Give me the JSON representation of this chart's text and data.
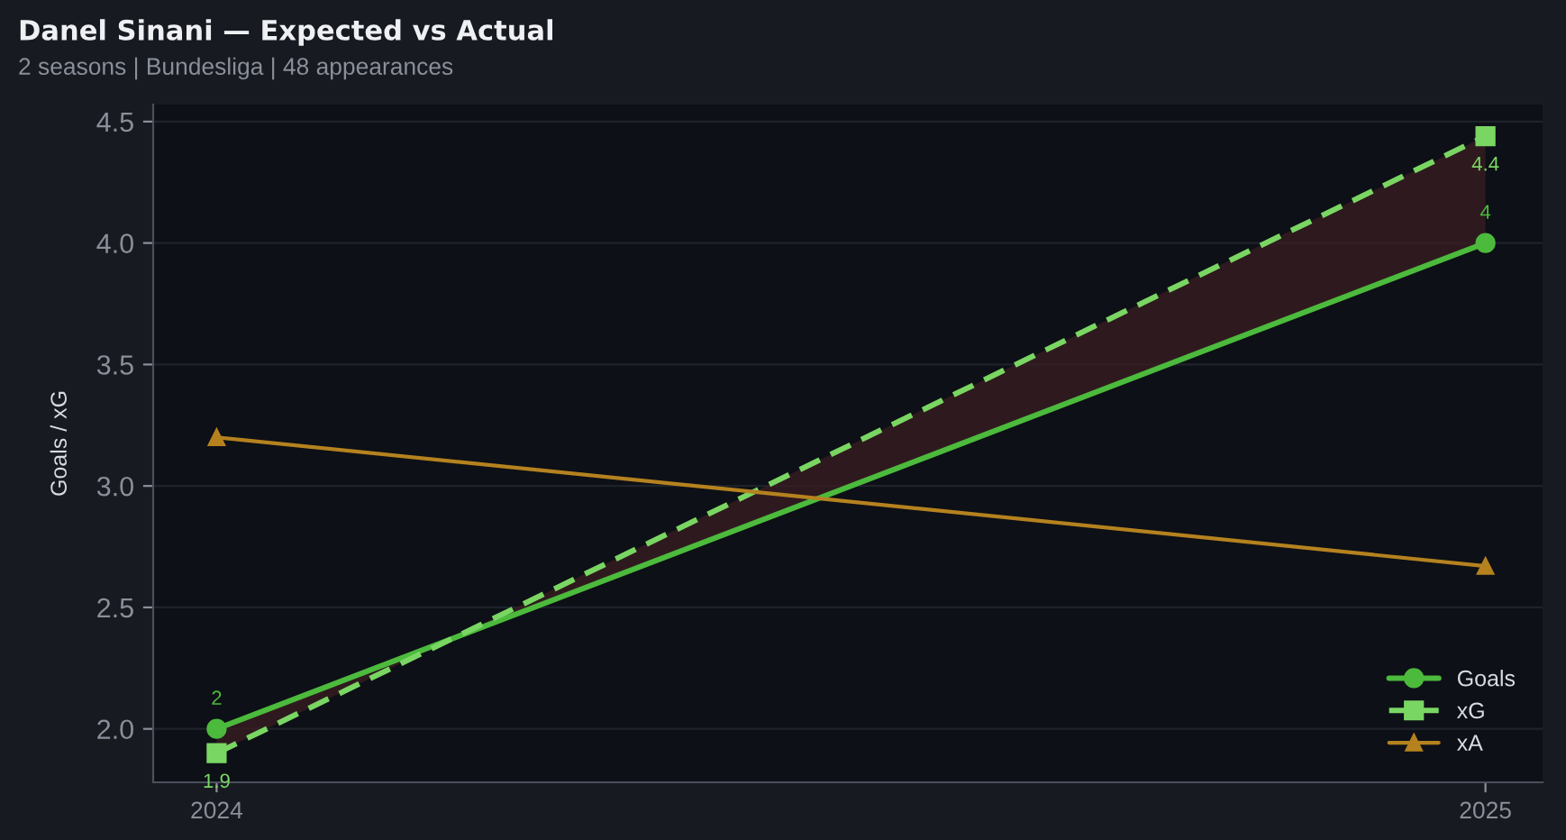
{
  "chart_data": {
    "type": "line",
    "title": "Danel Sinani — Expected vs Actual",
    "subtitle": "2 seasons | Bundesliga | 48 appearances",
    "ylabel": "Goals / xG",
    "x": [
      2024,
      2025
    ],
    "xlim": [
      2023.95,
      2025.045
    ],
    "xticks": [
      2024,
      2025
    ],
    "series": [
      {
        "name": "Goals",
        "color": "#4cba3c",
        "values": [
          2,
          4
        ],
        "marker": "circle",
        "line_style": "solid",
        "value_labels": [
          "2",
          "4"
        ]
      },
      {
        "name": "xG",
        "color": "#7ad663",
        "values": [
          1.9,
          4.44
        ],
        "marker": "square",
        "line_style": "dashed",
        "value_labels": [
          "1.9",
          "4.4"
        ],
        "lower": [
          2,
          4
        ],
        "upper": [
          1.9,
          4.44
        ]
      },
      {
        "name": "xA",
        "color": "#b5821f",
        "values": [
          3.2,
          2.67
        ],
        "marker": "triangle",
        "line_style": "solid"
      }
    ],
    "ylim": [
      1.78,
      4.57
    ],
    "yticks": [
      {
        "value": 2,
        "label": "2.0"
      },
      2.5,
      {
        "value": 3,
        "label": "3.0"
      },
      3.5,
      {
        "value": 4,
        "label": "4.0"
      },
      4.5
    ],
    "grid": "y",
    "legend": "bottom right"
  }
}
